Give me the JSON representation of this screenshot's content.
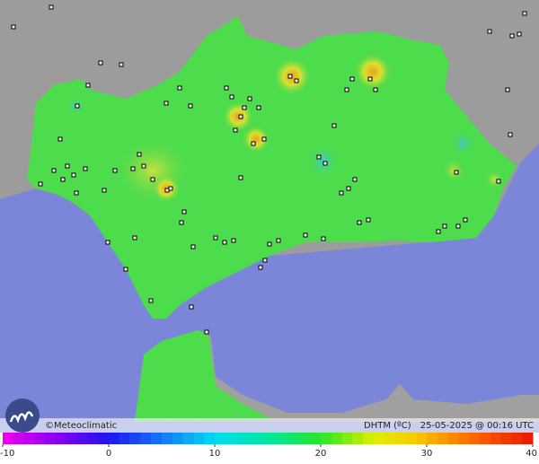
{
  "footer": {
    "credit": "©Meteoclimatic",
    "variable": "DHTM (ºC)",
    "timestamp": "25-05-2025 @ 00:16 UTC"
  },
  "colorbar": {
    "range": [
      -10,
      40
    ],
    "ticks": [
      -10,
      0,
      10,
      20,
      30,
      40
    ]
  }
}
